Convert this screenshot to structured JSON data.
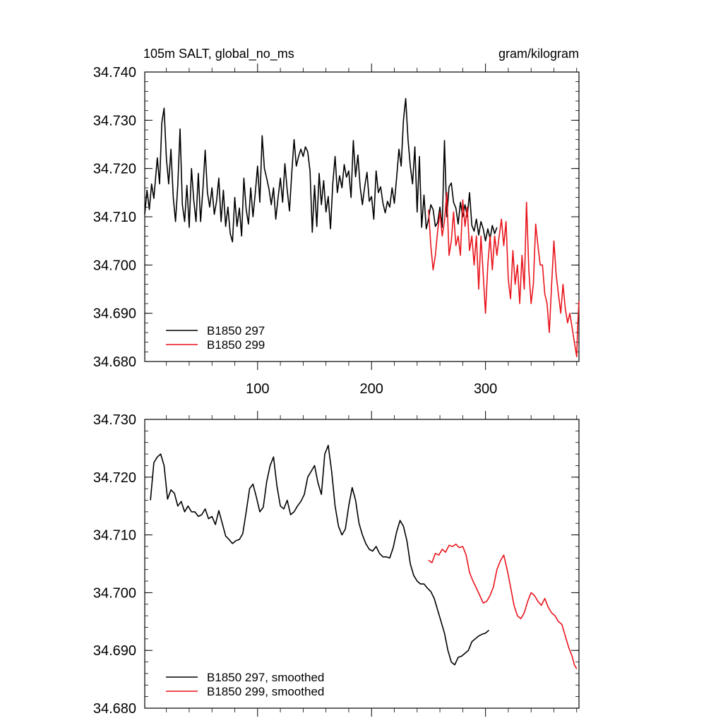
{
  "title_left": "105m SALT, global_no_ms",
  "title_right": "gram/kilogram",
  "chart_data": [
    {
      "type": "line",
      "xlim": [
        1,
        382
      ],
      "ylim": [
        34.68,
        34.74
      ],
      "xticks": [
        100,
        200,
        300
      ],
      "xtick_labels": [
        "100",
        "200",
        "300"
      ],
      "yticks": [
        34.68,
        34.69,
        34.7,
        34.71,
        34.72,
        34.73,
        34.74
      ],
      "ytick_labels": [
        "34.680",
        "34.690",
        "34.700",
        "34.710",
        "34.720",
        "34.730",
        "34.740"
      ],
      "grid": false,
      "legend": "bottom-left",
      "series": [
        {
          "name": "B1850 297",
          "color": "#000000",
          "x": [
            1,
            3,
            5,
            7,
            9,
            12,
            14,
            16,
            18,
            20,
            22,
            24,
            26,
            28,
            30,
            32,
            34,
            36,
            38,
            40,
            42,
            44,
            46,
            48,
            50,
            52,
            54,
            56,
            58,
            60,
            62,
            64,
            66,
            68,
            70,
            72,
            74,
            76,
            78,
            80,
            82,
            84,
            86,
            88,
            90,
            92,
            94,
            96,
            98,
            100,
            102,
            104,
            106,
            108,
            110,
            112,
            114,
            116,
            118,
            120,
            122,
            124,
            126,
            128,
            130,
            132,
            134,
            136,
            138,
            140,
            142,
            144,
            146,
            148,
            150,
            152,
            154,
            156,
            158,
            160,
            162,
            164,
            166,
            168,
            170,
            172,
            174,
            176,
            178,
            180,
            182,
            184,
            186,
            188,
            190,
            192,
            194,
            196,
            198,
            200,
            202,
            204,
            206,
            208,
            210,
            212,
            214,
            216,
            218,
            220,
            222,
            224,
            226,
            228,
            230,
            232,
            234,
            236,
            238,
            240,
            242,
            244,
            246,
            248,
            250,
            252,
            254,
            256,
            258,
            260,
            262,
            264,
            266,
            268,
            270,
            272,
            274,
            276,
            278,
            280,
            282,
            284,
            286,
            288,
            290,
            292,
            294,
            296,
            298,
            300,
            302,
            304,
            306,
            308,
            310
          ],
          "values": [
            34.7105,
            34.7155,
            34.7115,
            34.7168,
            34.7138,
            34.7222,
            34.7168,
            34.7295,
            34.7325,
            34.722,
            34.7168,
            34.724,
            34.714,
            34.709,
            34.7165,
            34.7282,
            34.7125,
            34.709,
            34.7165,
            34.7078,
            34.72,
            34.7135,
            34.709,
            34.719,
            34.709,
            34.7155,
            34.7238,
            34.715,
            34.712,
            34.716,
            34.7105,
            34.7132,
            34.718,
            34.709,
            34.7155,
            34.708,
            34.712,
            34.7065,
            34.7048,
            34.714,
            34.708,
            34.7118,
            34.706,
            34.718,
            34.7115,
            34.7085,
            34.716,
            34.71,
            34.715,
            34.7205,
            34.713,
            34.7268,
            34.72,
            34.718,
            34.7158,
            34.7125,
            34.716,
            34.7095,
            34.714,
            34.718,
            34.713,
            34.721,
            34.7155,
            34.7112,
            34.719,
            34.726,
            34.7205,
            34.7225,
            34.724,
            34.7225,
            34.7245,
            34.7235,
            34.7195,
            34.7068,
            34.7165,
            34.708,
            34.719,
            34.7125,
            34.7175,
            34.711,
            34.7142,
            34.7075,
            34.7168,
            34.7225,
            34.715,
            34.7185,
            34.716,
            34.7208,
            34.7182,
            34.7195,
            34.714,
            34.7258,
            34.7183,
            34.7228,
            34.7162,
            34.7125,
            34.7162,
            34.7192,
            34.7132,
            34.7142,
            34.7095,
            34.7195,
            34.715,
            34.7162,
            34.7128,
            34.7108,
            34.7132,
            34.712,
            34.716,
            34.7128,
            34.718,
            34.724,
            34.7205,
            34.73,
            34.7345,
            34.726,
            34.7205,
            34.7168,
            34.7245,
            34.711,
            34.7225,
            34.7078,
            34.7145,
            34.7075,
            34.7095,
            34.7125,
            34.7115,
            34.708,
            34.7088,
            34.712,
            34.7078,
            34.7258,
            34.71,
            34.7162,
            34.717,
            34.713,
            34.7118,
            34.7085,
            34.713,
            34.71,
            34.7125,
            34.71,
            34.715,
            34.7082,
            34.707,
            34.7095,
            34.7062,
            34.709,
            34.7075,
            34.705,
            34.7075,
            34.7055,
            34.7082,
            34.7065,
            34.7078
          ]
        },
        {
          "name": "B1850 299",
          "color": "#e8141c",
          "x": [],
          "values": []
        }
      ]
    },
    {
      "type": "line",
      "xlim": [
        1,
        382
      ],
      "ylim": [
        34.68,
        34.73
      ],
      "xticks": [
        100,
        200,
        300
      ],
      "xtick_labels": [
        "",
        "",
        ""
      ],
      "yticks": [
        34.68,
        34.69,
        34.7,
        34.71,
        34.72,
        34.73
      ],
      "ytick_labels": [
        "34.680",
        "34.690",
        "34.700",
        "34.710",
        "34.720",
        "34.730"
      ],
      "grid": false,
      "legend": "bottom-left",
      "series": [
        {
          "name": "B1850 297, smoothed",
          "color": "#000000",
          "x": [
            6,
            9,
            12,
            15,
            18,
            21,
            24,
            27,
            30,
            33,
            36,
            39,
            42,
            45,
            48,
            51,
            54,
            57,
            60,
            63,
            66,
            69,
            72,
            75,
            78,
            81,
            84,
            87,
            90,
            93,
            96,
            99,
            102,
            105,
            108,
            111,
            114,
            117,
            120,
            123,
            126,
            129,
            132,
            135,
            138,
            141,
            144,
            147,
            150,
            153,
            156,
            159,
            162,
            165,
            168,
            171,
            174,
            177,
            180,
            183,
            186,
            189,
            192,
            195,
            198,
            201,
            204,
            207,
            210,
            213,
            216,
            219,
            222,
            225,
            228,
            231,
            234,
            237,
            240,
            243,
            246,
            249,
            252,
            255,
            258,
            261,
            264,
            267,
            270,
            273,
            276,
            279,
            282,
            285,
            288,
            291,
            294,
            297,
            300,
            303
          ],
          "values": [
            34.716,
            34.7225,
            34.7235,
            34.724,
            34.722,
            34.7162,
            34.7178,
            34.7172,
            34.715,
            34.7158,
            34.714,
            34.715,
            34.714,
            34.714,
            34.7132,
            34.7135,
            34.7145,
            34.7128,
            34.7132,
            34.7118,
            34.7142,
            34.712,
            34.7098,
            34.7092,
            34.7085,
            34.709,
            34.7092,
            34.7102,
            34.714,
            34.718,
            34.7188,
            34.7165,
            34.714,
            34.7148,
            34.7192,
            34.722,
            34.7235,
            34.7185,
            34.715,
            34.7145,
            34.716,
            34.7135,
            34.714,
            34.715,
            34.7158,
            34.717,
            34.72,
            34.721,
            34.722,
            34.719,
            34.717,
            34.724,
            34.7255,
            34.721,
            34.715,
            34.7115,
            34.71,
            34.711,
            34.715,
            34.7182,
            34.716,
            34.712,
            34.71,
            34.7085,
            34.7075,
            34.7072,
            34.708,
            34.7068,
            34.7062,
            34.7062,
            34.706,
            34.7078,
            34.7105,
            34.7125,
            34.7115,
            34.709,
            34.705,
            34.703,
            34.702,
            34.7015,
            34.7015,
            34.7008,
            34.7002,
            34.699,
            34.697,
            34.695,
            34.693,
            34.69,
            34.688,
            34.6875,
            34.6888,
            34.689,
            34.6895,
            34.69,
            34.6915,
            34.692,
            34.6925,
            34.6928,
            34.693,
            34.6935
          ]
        },
        {
          "name": "B1850 299, smoothed",
          "color": "#e8141c",
          "x": [],
          "values": []
        }
      ]
    }
  ]
}
